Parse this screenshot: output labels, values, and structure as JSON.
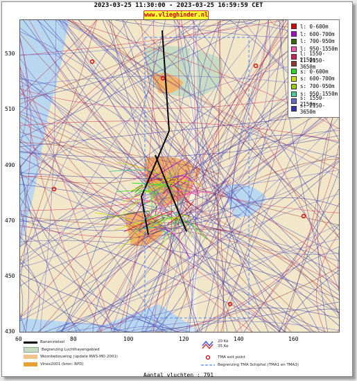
{
  "header": {
    "time_range": "2023-03-25 11:30:00 - 2023-03-25 16:59:59 CET",
    "site": "www.vlieghinder.nl"
  },
  "axes": {
    "y_ticks": [
      "530",
      "510",
      "490",
      "470",
      "450",
      "430"
    ],
    "x_ticks": [
      "60",
      "80",
      "100",
      "120",
      "140",
      "160"
    ]
  },
  "legend": [
    {
      "label": "l: 0-600m",
      "color": "#dd0000"
    },
    {
      "label": "l: 600-700m",
      "color": "#aa00cc"
    },
    {
      "label": "l: 700-950m",
      "color": "#336600"
    },
    {
      "label": "l: 950-1550m",
      "color": "#ff55aa"
    },
    {
      "label": "l: 1550-2150m",
      "color": "#cc2255"
    },
    {
      "label": "l: 2150-3650m",
      "color": "#993333"
    },
    {
      "label": "s: 0-600m",
      "color": "#22dd22"
    },
    {
      "label": "s: 600-700m",
      "color": "#ccdd00"
    },
    {
      "label": "s: 700-950m",
      "color": "#99cc00"
    },
    {
      "label": "s: 950-1550m",
      "color": "#44cc99"
    },
    {
      "label": "s: 1550-2150m",
      "color": "#6666cc"
    },
    {
      "label": "s: 2150-3650m",
      "color": "#3333aa"
    }
  ],
  "map_legend": {
    "banenstelsel": "Banenstelsel",
    "luchthaven": "Begrenzing Luchthavengebied",
    "woonbebouwing": "Woonbebouwing (update RWS-MD 2001)",
    "vinex": "Vinex2001 (bron: RPD)",
    "kv20": "20 Ke",
    "kv35": "35 Ke",
    "tma_exit": "TMA exit point",
    "tma_boundary": "Begrenzing TMA Schiphol (TMA1 en TMA3)"
  },
  "colors": {
    "land": "#f2e7c9",
    "water": "#b9d7ef",
    "urban": "#f1b46a",
    "greenery": "#c8dcc4"
  },
  "footer": {
    "count": "Aantal vluchten : 791"
  }
}
